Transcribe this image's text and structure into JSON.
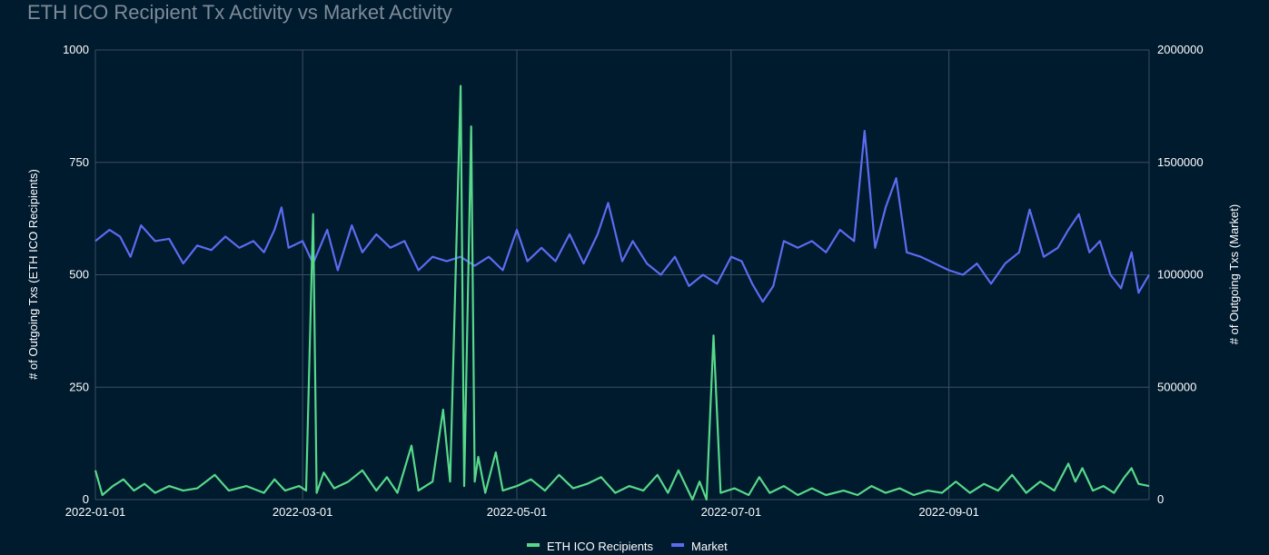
{
  "chart_data": {
    "type": "line",
    "title": "ETH ICO Recipient Tx Activity vs Market Activity",
    "y_left_label": "# of Outgoing Txs (ETH ICO Recipients)",
    "y_right_label": "# of Outgoing Txs (Market)",
    "y_left_range": [
      0,
      1000
    ],
    "y_right_range": [
      0,
      2000000
    ],
    "y_left_ticks": [
      "0",
      "250",
      "500",
      "750",
      "1000"
    ],
    "y_right_ticks": [
      "0",
      "500000",
      "1000000",
      "1500000",
      "2000000"
    ],
    "x_range": [
      "2022-01-01",
      "2022-10-28"
    ],
    "x_ticks": [
      "2022-01-01",
      "2022-03-01",
      "2022-05-01",
      "2022-07-01",
      "2022-09-01"
    ],
    "grid": true,
    "legend_position": "bottom",
    "colors": {
      "eth": "#57d98a",
      "market": "#5b6cf0"
    },
    "series": [
      {
        "name": "ETH ICO Recipients",
        "axis": "left",
        "points": [
          [
            "2022-01-01",
            65
          ],
          [
            "2022-01-03",
            10
          ],
          [
            "2022-01-06",
            30
          ],
          [
            "2022-01-09",
            45
          ],
          [
            "2022-01-12",
            20
          ],
          [
            "2022-01-15",
            35
          ],
          [
            "2022-01-18",
            15
          ],
          [
            "2022-01-22",
            30
          ],
          [
            "2022-01-26",
            20
          ],
          [
            "2022-01-30",
            25
          ],
          [
            "2022-02-04",
            55
          ],
          [
            "2022-02-08",
            20
          ],
          [
            "2022-02-13",
            30
          ],
          [
            "2022-02-18",
            15
          ],
          [
            "2022-02-21",
            45
          ],
          [
            "2022-02-24",
            20
          ],
          [
            "2022-02-28",
            30
          ],
          [
            "2022-03-02",
            20
          ],
          [
            "2022-03-04",
            635
          ],
          [
            "2022-03-05",
            15
          ],
          [
            "2022-03-07",
            60
          ],
          [
            "2022-03-10",
            25
          ],
          [
            "2022-03-14",
            40
          ],
          [
            "2022-03-18",
            65
          ],
          [
            "2022-03-22",
            20
          ],
          [
            "2022-03-25",
            50
          ],
          [
            "2022-03-28",
            15
          ],
          [
            "2022-04-01",
            120
          ],
          [
            "2022-04-03",
            20
          ],
          [
            "2022-04-07",
            40
          ],
          [
            "2022-04-10",
            200
          ],
          [
            "2022-04-12",
            40
          ],
          [
            "2022-04-15",
            920
          ],
          [
            "2022-04-16",
            30
          ],
          [
            "2022-04-18",
            830
          ],
          [
            "2022-04-19",
            40
          ],
          [
            "2022-04-20",
            95
          ],
          [
            "2022-04-22",
            15
          ],
          [
            "2022-04-25",
            105
          ],
          [
            "2022-04-27",
            20
          ],
          [
            "2022-05-01",
            30
          ],
          [
            "2022-05-05",
            45
          ],
          [
            "2022-05-09",
            20
          ],
          [
            "2022-05-13",
            55
          ],
          [
            "2022-05-17",
            25
          ],
          [
            "2022-05-21",
            35
          ],
          [
            "2022-05-25",
            50
          ],
          [
            "2022-05-29",
            15
          ],
          [
            "2022-06-02",
            30
          ],
          [
            "2022-06-06",
            20
          ],
          [
            "2022-06-10",
            55
          ],
          [
            "2022-06-13",
            15
          ],
          [
            "2022-06-16",
            65
          ],
          [
            "2022-06-20",
            0
          ],
          [
            "2022-06-22",
            40
          ],
          [
            "2022-06-24",
            0
          ],
          [
            "2022-06-26",
            365
          ],
          [
            "2022-06-28",
            15
          ],
          [
            "2022-07-02",
            25
          ],
          [
            "2022-07-06",
            10
          ],
          [
            "2022-07-09",
            50
          ],
          [
            "2022-07-12",
            15
          ],
          [
            "2022-07-16",
            30
          ],
          [
            "2022-07-20",
            10
          ],
          [
            "2022-07-24",
            25
          ],
          [
            "2022-07-28",
            10
          ],
          [
            "2022-08-02",
            20
          ],
          [
            "2022-08-06",
            10
          ],
          [
            "2022-08-10",
            30
          ],
          [
            "2022-08-14",
            15
          ],
          [
            "2022-08-18",
            25
          ],
          [
            "2022-08-22",
            10
          ],
          [
            "2022-08-26",
            20
          ],
          [
            "2022-08-30",
            15
          ],
          [
            "2022-09-03",
            40
          ],
          [
            "2022-09-07",
            15
          ],
          [
            "2022-09-11",
            35
          ],
          [
            "2022-09-15",
            20
          ],
          [
            "2022-09-19",
            55
          ],
          [
            "2022-09-23",
            15
          ],
          [
            "2022-09-27",
            40
          ],
          [
            "2022-10-01",
            20
          ],
          [
            "2022-10-05",
            80
          ],
          [
            "2022-10-07",
            40
          ],
          [
            "2022-10-09",
            70
          ],
          [
            "2022-10-12",
            20
          ],
          [
            "2022-10-15",
            30
          ],
          [
            "2022-10-18",
            15
          ],
          [
            "2022-10-21",
            50
          ],
          [
            "2022-10-23",
            70
          ],
          [
            "2022-10-25",
            35
          ],
          [
            "2022-10-28",
            30
          ]
        ]
      },
      {
        "name": "Market",
        "axis": "right",
        "points": [
          [
            "2022-01-01",
            1150000
          ],
          [
            "2022-01-05",
            1200000
          ],
          [
            "2022-01-08",
            1170000
          ],
          [
            "2022-01-11",
            1080000
          ],
          [
            "2022-01-14",
            1220000
          ],
          [
            "2022-01-18",
            1150000
          ],
          [
            "2022-01-22",
            1160000
          ],
          [
            "2022-01-26",
            1050000
          ],
          [
            "2022-01-30",
            1130000
          ],
          [
            "2022-02-03",
            1110000
          ],
          [
            "2022-02-07",
            1170000
          ],
          [
            "2022-02-11",
            1120000
          ],
          [
            "2022-02-15",
            1150000
          ],
          [
            "2022-02-18",
            1100000
          ],
          [
            "2022-02-21",
            1200000
          ],
          [
            "2022-02-23",
            1300000
          ],
          [
            "2022-02-25",
            1120000
          ],
          [
            "2022-03-01",
            1150000
          ],
          [
            "2022-03-04",
            1050000
          ],
          [
            "2022-03-08",
            1200000
          ],
          [
            "2022-03-11",
            1020000
          ],
          [
            "2022-03-15",
            1220000
          ],
          [
            "2022-03-18",
            1100000
          ],
          [
            "2022-03-22",
            1180000
          ],
          [
            "2022-03-26",
            1120000
          ],
          [
            "2022-03-30",
            1150000
          ],
          [
            "2022-04-03",
            1020000
          ],
          [
            "2022-04-07",
            1080000
          ],
          [
            "2022-04-11",
            1060000
          ],
          [
            "2022-04-15",
            1080000
          ],
          [
            "2022-04-19",
            1040000
          ],
          [
            "2022-04-23",
            1080000
          ],
          [
            "2022-04-27",
            1020000
          ],
          [
            "2022-05-01",
            1200000
          ],
          [
            "2022-05-04",
            1060000
          ],
          [
            "2022-05-08",
            1120000
          ],
          [
            "2022-05-12",
            1060000
          ],
          [
            "2022-05-16",
            1180000
          ],
          [
            "2022-05-20",
            1050000
          ],
          [
            "2022-05-24",
            1180000
          ],
          [
            "2022-05-27",
            1320000
          ],
          [
            "2022-05-31",
            1060000
          ],
          [
            "2022-06-03",
            1150000
          ],
          [
            "2022-06-07",
            1050000
          ],
          [
            "2022-06-11",
            1000000
          ],
          [
            "2022-06-15",
            1080000
          ],
          [
            "2022-06-19",
            950000
          ],
          [
            "2022-06-23",
            1000000
          ],
          [
            "2022-06-27",
            960000
          ],
          [
            "2022-07-01",
            1080000
          ],
          [
            "2022-07-04",
            1060000
          ],
          [
            "2022-07-07",
            960000
          ],
          [
            "2022-07-10",
            880000
          ],
          [
            "2022-07-13",
            950000
          ],
          [
            "2022-07-16",
            1150000
          ],
          [
            "2022-07-20",
            1120000
          ],
          [
            "2022-07-24",
            1150000
          ],
          [
            "2022-07-28",
            1100000
          ],
          [
            "2022-08-01",
            1200000
          ],
          [
            "2022-08-05",
            1150000
          ],
          [
            "2022-08-08",
            1640000
          ],
          [
            "2022-08-11",
            1120000
          ],
          [
            "2022-08-14",
            1300000
          ],
          [
            "2022-08-17",
            1430000
          ],
          [
            "2022-08-20",
            1100000
          ],
          [
            "2022-08-24",
            1080000
          ],
          [
            "2022-08-28",
            1050000
          ],
          [
            "2022-09-01",
            1020000
          ],
          [
            "2022-09-05",
            1000000
          ],
          [
            "2022-09-09",
            1050000
          ],
          [
            "2022-09-13",
            960000
          ],
          [
            "2022-09-17",
            1050000
          ],
          [
            "2022-09-21",
            1100000
          ],
          [
            "2022-09-24",
            1290000
          ],
          [
            "2022-09-28",
            1080000
          ],
          [
            "2022-10-02",
            1120000
          ],
          [
            "2022-10-05",
            1200000
          ],
          [
            "2022-10-08",
            1270000
          ],
          [
            "2022-10-11",
            1100000
          ],
          [
            "2022-10-14",
            1150000
          ],
          [
            "2022-10-17",
            1000000
          ],
          [
            "2022-10-20",
            940000
          ],
          [
            "2022-10-23",
            1100000
          ],
          [
            "2022-10-25",
            920000
          ],
          [
            "2022-10-28",
            1000000
          ]
        ]
      }
    ]
  }
}
